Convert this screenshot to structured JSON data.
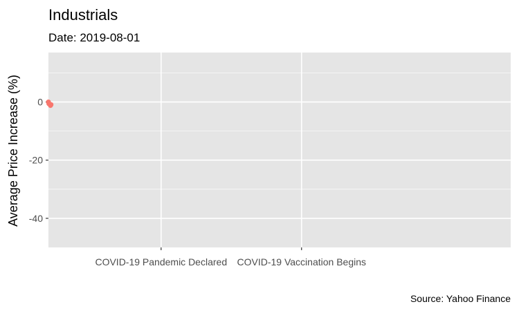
{
  "chart_data": {
    "type": "scatter",
    "title": "Industrials",
    "subtitle": "Date: 2019-08-01",
    "ylabel": "Average Price Increase (%)",
    "xlabel": "",
    "caption": "Source: Yahoo Finance",
    "x_axis": {
      "type": "date",
      "range": [
        "2019-08-01",
        "2022-02-01"
      ],
      "ticks": [
        {
          "date": "2020-03-11",
          "label": "COVID-19 Pandemic Declared"
        },
        {
          "date": "2020-12-14",
          "label": "COVID-19 Vaccination Begins"
        }
      ]
    },
    "y_axis": {
      "range": [
        -50,
        17
      ],
      "ticks": [
        0,
        -20,
        -40
      ]
    },
    "grid": true,
    "legend": "none",
    "colors": {
      "panel": "#e5e5e5",
      "grid": "#ffffff",
      "point": "#f8766d"
    },
    "points": [
      {
        "x": "2019-08-01",
        "y": 0.0
      },
      {
        "x": "2019-08-02",
        "y": -0.6
      },
      {
        "x": "2019-08-05",
        "y": -1.2
      },
      {
        "x": "2019-08-06",
        "y": -0.9
      }
    ]
  }
}
